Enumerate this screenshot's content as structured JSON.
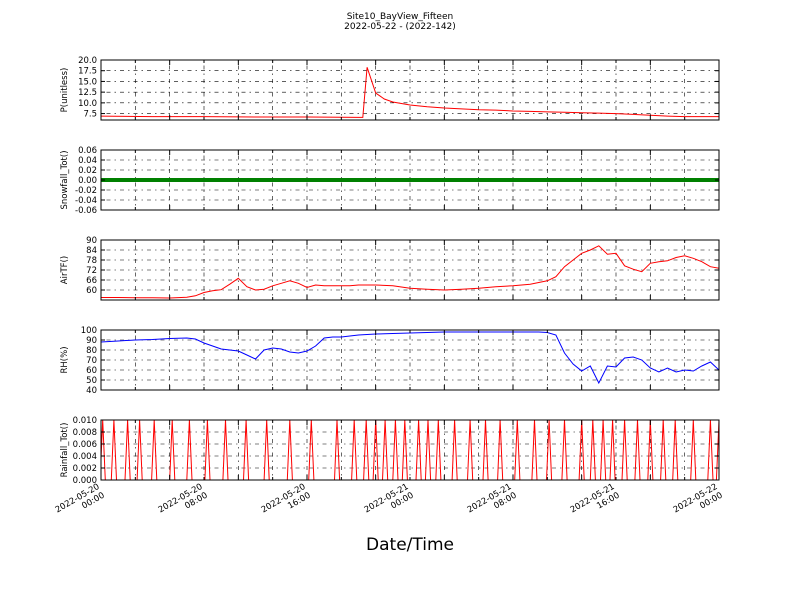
{
  "header": {
    "title": "Site10_BayView_Fifteen",
    "subtitle": "2022-05-22 - (2022-142)"
  },
  "xlabel": "Date/Time",
  "x_ticks": [
    "2022-05-20 00:00",
    "2022-05-20 08:00",
    "2022-05-20 16:00",
    "2022-05-21 00:00",
    "2022-05-21 08:00",
    "2022-05-21 16:00",
    "2022-05-22 00:00"
  ],
  "chart_data": [
    {
      "type": "line",
      "ylabel": "P(unitless)",
      "ylim": [
        6,
        20
      ],
      "yticks": [
        "7.5",
        "10.0",
        "12.5",
        "15.0",
        "17.5",
        "20.0"
      ],
      "grid": true,
      "color": "#ff0000",
      "x_hours": [
        0,
        6,
        12,
        18,
        24,
        30,
        30.5,
        31,
        32,
        33,
        34,
        36,
        38,
        40,
        42,
        44,
        46,
        48,
        50,
        52,
        54,
        56,
        58,
        60,
        62,
        64,
        66,
        68,
        70,
        72
      ],
      "values": [
        6.9,
        6.8,
        6.8,
        6.7,
        6.7,
        6.6,
        6.6,
        18.3,
        12.3,
        10.9,
        10.2,
        9.5,
        9.1,
        8.8,
        8.6,
        8.4,
        8.3,
        8.1,
        8.0,
        7.9,
        7.8,
        7.7,
        7.6,
        7.5,
        7.3,
        7.1,
        6.9,
        6.8,
        6.8,
        6.8
      ]
    },
    {
      "type": "line",
      "ylabel": "Snowfall_Tot()",
      "ylim": [
        -0.06,
        0.06
      ],
      "yticks": [
        "-0.06",
        "-0.04",
        "-0.02",
        "0.00",
        "0.02",
        "0.04",
        "0.06"
      ],
      "grid": true,
      "color": "#008000",
      "x_hours": [
        0,
        72
      ],
      "values": [
        0,
        0
      ]
    },
    {
      "type": "line",
      "ylabel": "AirTF()",
      "ylim": [
        54,
        90
      ],
      "yticks": [
        "60",
        "66",
        "72",
        "78",
        "84",
        "90"
      ],
      "grid": true,
      "color": "#ff0000",
      "x_hours": [
        0,
        2,
        4,
        6,
        8,
        10,
        11,
        12,
        13,
        14,
        15,
        16,
        17,
        18,
        19,
        20,
        21,
        22,
        23,
        24,
        25,
        26,
        27,
        28,
        29,
        30,
        32,
        34,
        36,
        38,
        40,
        42,
        44,
        46,
        48,
        50,
        52,
        53,
        54,
        55,
        56,
        57,
        58,
        59,
        60,
        61,
        62,
        63,
        64,
        65,
        66,
        67,
        68,
        69,
        70,
        71,
        72
      ],
      "values": [
        55.5,
        55.5,
        55.3,
        55.3,
        55.2,
        55.6,
        56.5,
        58.5,
        59.5,
        60.2,
        63.5,
        67.0,
        62.0,
        60.0,
        60.5,
        62.5,
        64.0,
        65.5,
        64.0,
        61.5,
        63.0,
        62.5,
        62.5,
        62.5,
        62.5,
        63.0,
        63.0,
        62.5,
        61.0,
        60.5,
        60.0,
        60.5,
        61.0,
        62.0,
        62.5,
        63.5,
        65.5,
        68.0,
        74.0,
        78.0,
        82.0,
        84.0,
        86.5,
        81.5,
        82.0,
        74.5,
        72.5,
        71.0,
        76.0,
        77.0,
        77.5,
        79.5,
        80.5,
        79.0,
        77.0,
        74.0,
        73.0
      ]
    },
    {
      "type": "line",
      "ylabel": "RH(%)",
      "ylim": [
        40,
        100
      ],
      "yticks": [
        "40",
        "50",
        "60",
        "70",
        "80",
        "90",
        "100"
      ],
      "grid": true,
      "color": "#0000ff",
      "x_hours": [
        0,
        2,
        4,
        6,
        8,
        10,
        11,
        12,
        13,
        14,
        15,
        16,
        17,
        18,
        19,
        20,
        21,
        22,
        23,
        24,
        25,
        26,
        27,
        28,
        29,
        30,
        32,
        34,
        36,
        38,
        40,
        42,
        44,
        46,
        48,
        50,
        51,
        52,
        53,
        54,
        55,
        56,
        57,
        58,
        59,
        60,
        61,
        62,
        63,
        64,
        65,
        66,
        67,
        68,
        69,
        70,
        71,
        72
      ],
      "values": [
        88,
        89,
        90,
        90.5,
        91.5,
        92,
        91,
        87,
        84,
        81,
        80,
        79,
        75,
        71,
        80,
        82,
        81,
        78,
        77,
        79,
        84,
        92,
        93,
        93,
        94,
        95,
        96,
        96.5,
        97,
        97.5,
        98,
        98,
        98,
        98,
        98,
        98,
        98,
        97.5,
        95,
        77,
        66,
        59,
        64,
        47,
        64,
        63,
        72,
        73,
        70,
        62,
        58,
        62,
        58,
        60,
        59,
        64,
        68,
        60
      ]
    },
    {
      "type": "line",
      "ylabel": "Rainfall_Tot()",
      "ylim": [
        0,
        0.01
      ],
      "yticks": [
        "0.000",
        "0.002",
        "0.004",
        "0.006",
        "0.008",
        "0.010"
      ],
      "grid": true,
      "color": "#ff0000",
      "spike_value": 0.01,
      "spike_half_width_hours": 0.3,
      "spike_hours": [
        0.2,
        1.5,
        3.1,
        4.5,
        6.2,
        8.3,
        10.3,
        12.4,
        14.5,
        16.9,
        19.3,
        22.0,
        24.5,
        27.5,
        29.5,
        30.9,
        32.0,
        33.1,
        34.3,
        35.4,
        37.0,
        38.1,
        39.3,
        41.2,
        43.0,
        44.8,
        46.5,
        48.5,
        50.5,
        52.2,
        54.0,
        56.0,
        57.3,
        58.5,
        59.6,
        61.0,
        62.5,
        64.0,
        65.5,
        66.9,
        69.0,
        71.0,
        72.0
      ]
    }
  ]
}
